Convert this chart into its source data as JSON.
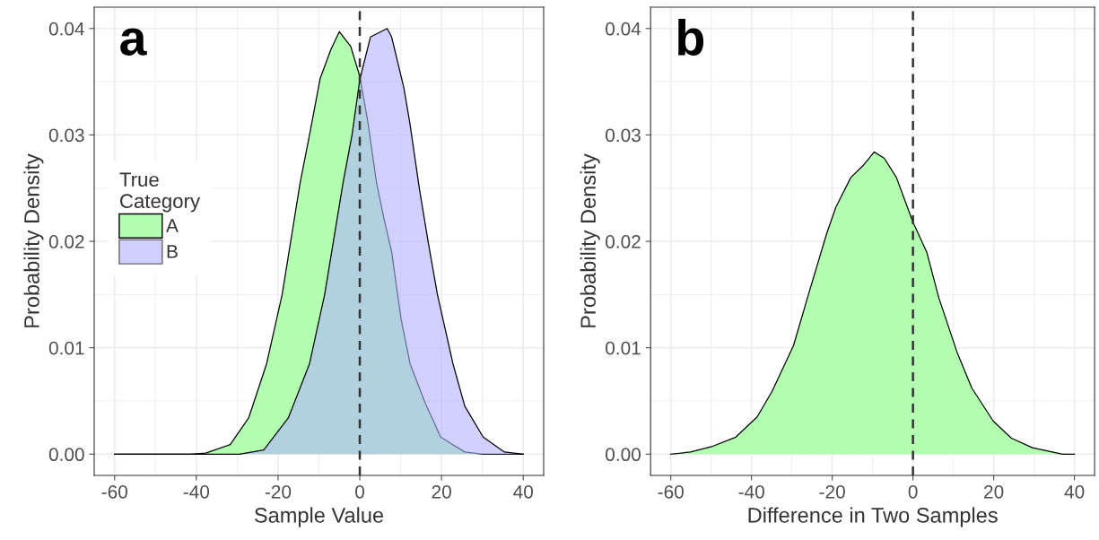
{
  "chart_data": [
    {
      "type": "area",
      "xlabel": "Sample Value",
      "ylabel": "Probability Density",
      "legend_title": "True\nCategory",
      "legend": "left",
      "grid": true,
      "xlim": [
        -65,
        45
      ],
      "xticks": [
        -60,
        -40,
        -20,
        0,
        20,
        40
      ],
      "ylim": [
        -0.002,
        0.042
      ],
      "yticks": [
        {
          "value": 0,
          "label": "0.00"
        },
        {
          "value": 0.01,
          "label": "0.01"
        },
        {
          "value": 0.02,
          "label": "0.02"
        },
        {
          "value": 0.03,
          "label": "0.03"
        },
        {
          "value": 0.04,
          "label": "0.04"
        }
      ],
      "ref_lines": [
        {
          "axis": "x",
          "value": 0,
          "label": null,
          "color": "#333333",
          "line_style": "dashed"
        }
      ],
      "annotations": [
        "a"
      ],
      "series": [
        {
          "name": "A",
          "color": "#b2ffb2",
          "x": [
            -60,
            -41.4,
            -37.7,
            -31.7,
            -27.2,
            -22.8,
            -19.0,
            -14.6,
            -12.3,
            -9.7,
            -7.1,
            -5.0,
            -2.2,
            0,
            1.9,
            4.1,
            6.0,
            7.8,
            10.1,
            12.3,
            16.0,
            19.8,
            25.7,
            30.2,
            40
          ],
          "values": [
            0,
            0,
            0.0001,
            0.0009,
            0.0034,
            0.0085,
            0.015,
            0.0255,
            0.03,
            0.0353,
            0.038,
            0.0397,
            0.0383,
            0.0355,
            0.0314,
            0.0255,
            0.022,
            0.019,
            0.0127,
            0.0085,
            0.0048,
            0.0016,
            0.0002,
            0,
            0
          ]
        },
        {
          "name": "B",
          "color": "#b2b2ff",
          "x": [
            -60,
            -29.5,
            -23.5,
            -17.5,
            -12.3,
            -8.6,
            -4.1,
            -1.9,
            0,
            2.6,
            6.7,
            7.8,
            10.8,
            12.3,
            14.6,
            16.8,
            19.0,
            22.8,
            25.7,
            30.2,
            35.4,
            40
          ],
          "values": [
            0,
            0,
            0.0004,
            0.0034,
            0.0085,
            0.015,
            0.0255,
            0.03,
            0.0352,
            0.0392,
            0.04,
            0.0392,
            0.0344,
            0.031,
            0.0249,
            0.0198,
            0.015,
            0.0085,
            0.0045,
            0.0016,
            0.0002,
            0
          ]
        }
      ]
    },
    {
      "type": "area",
      "xlabel": "Difference in Two Samples",
      "ylabel": "Probability Density",
      "grid": true,
      "xlim": [
        -65,
        45
      ],
      "xticks": [
        -60,
        -40,
        -20,
        0,
        20,
        40
      ],
      "ylim": [
        -0.002,
        0.042
      ],
      "yticks": [
        {
          "value": 0,
          "label": "0.00"
        },
        {
          "value": 0.01,
          "label": "0.01"
        },
        {
          "value": 0.02,
          "label": "0.02"
        },
        {
          "value": 0.03,
          "label": "0.03"
        },
        {
          "value": 0.04,
          "label": "0.04"
        }
      ],
      "ref_lines": [
        {
          "axis": "x",
          "value": 0,
          "label": null,
          "color": "#333333",
          "line_style": "dashed"
        }
      ],
      "annotations": [
        "b"
      ],
      "series": [
        {
          "color": "#b2ffb2",
          "x": [
            -60,
            -55.1,
            -49.9,
            -43.9,
            -38.6,
            -34.9,
            -29.6,
            -25.9,
            -21.4,
            -19.1,
            -15.4,
            -12.4,
            -9.6,
            -7.1,
            -4.1,
            0,
            3.4,
            6.4,
            10.9,
            14.6,
            19.9,
            24.4,
            29.6,
            37.1,
            40
          ],
          "values": [
            0,
            0.0002,
            0.0007,
            0.0016,
            0.0035,
            0.0059,
            0.0102,
            0.015,
            0.0207,
            0.0232,
            0.026,
            0.0271,
            0.0284,
            0.0278,
            0.026,
            0.0218,
            0.019,
            0.0147,
            0.0096,
            0.0062,
            0.0031,
            0.0015,
            0.0006,
            0,
            0
          ]
        }
      ]
    }
  ]
}
